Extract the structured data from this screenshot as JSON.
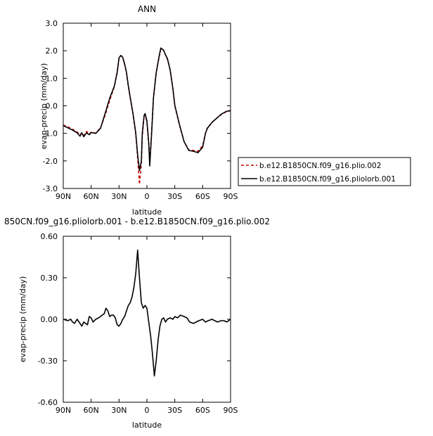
{
  "chart_data": [
    {
      "type": "line",
      "title": "ANN",
      "xlabel": "latitude",
      "ylabel": "evap-precip (mm/day)",
      "xlim": [
        90,
        -90
      ],
      "ylim": [
        -3.0,
        3.0
      ],
      "x_ticks": [
        {
          "value": 90,
          "label": "90N"
        },
        {
          "value": 60,
          "label": "60N"
        },
        {
          "value": 30,
          "label": "30N"
        },
        {
          "value": 0,
          "label": "0"
        },
        {
          "value": -30,
          "label": "30S"
        },
        {
          "value": -60,
          "label": "60S"
        },
        {
          "value": -90,
          "label": "90S"
        }
      ],
      "y_ticks": [
        {
          "value": 3.0,
          "label": "3.0"
        },
        {
          "value": 2.0,
          "label": "2.0"
        },
        {
          "value": 1.0,
          "label": "1.0"
        },
        {
          "value": 0.0,
          "label": "0.0"
        },
        {
          "value": -1.0,
          "label": "-1.0"
        },
        {
          "value": -2.0,
          "label": "-2.0"
        },
        {
          "value": -3.0,
          "label": "-3.0"
        }
      ],
      "legend_position": "right",
      "series": [
        {
          "name": "b.e12.B1850CN.f09_g16.plio.002",
          "color": "#cc0000",
          "style": "dashed",
          "x": [
            90,
            85,
            80,
            75,
            72,
            70,
            68,
            65,
            62,
            60,
            55,
            50,
            45,
            40,
            35,
            32,
            30,
            28,
            26,
            24,
            22,
            20,
            18,
            15,
            12,
            10,
            8,
            6,
            5,
            3,
            2,
            0,
            -2,
            -3,
            -5,
            -7,
            -10,
            -13,
            -15,
            -18,
            -20,
            -22,
            -25,
            -28,
            -30,
            -35,
            -40,
            -45,
            -50,
            -55,
            -60,
            -63,
            -65,
            -70,
            -75,
            -80,
            -85,
            -88,
            -90
          ],
          "y": [
            -0.7,
            -0.76,
            -0.85,
            -0.95,
            -1.05,
            -0.98,
            -1.08,
            -0.93,
            -1.02,
            -0.96,
            -0.99,
            -0.8,
            -0.35,
            0.2,
            0.7,
            1.2,
            1.72,
            1.83,
            1.76,
            1.5,
            1.2,
            0.7,
            0.3,
            -0.3,
            -1.0,
            -1.9,
            -2.85,
            -2.1,
            -1.1,
            -0.4,
            -0.3,
            -0.6,
            -1.4,
            -2.0,
            -1.0,
            0.3,
            1.2,
            1.75,
            2.08,
            2.02,
            1.85,
            1.7,
            1.3,
            0.6,
            0.0,
            -0.7,
            -1.3,
            -1.6,
            -1.62,
            -1.65,
            -1.45,
            -1.0,
            -0.8,
            -0.6,
            -0.45,
            -0.32,
            -0.22,
            -0.19,
            -0.18
          ]
        },
        {
          "name": "b.e12.B1850CN.f09_g16.pliolorb.001",
          "color": "#000000",
          "style": "solid",
          "x": [
            90,
            85,
            80,
            75,
            72,
            70,
            68,
            65,
            62,
            60,
            55,
            50,
            45,
            40,
            35,
            32,
            30,
            28,
            26,
            24,
            22,
            20,
            18,
            15,
            12,
            10,
            8,
            6,
            5,
            3,
            2,
            0,
            -2,
            -3,
            -5,
            -7,
            -10,
            -13,
            -15,
            -18,
            -20,
            -22,
            -25,
            -28,
            -30,
            -35,
            -40,
            -45,
            -50,
            -55,
            -60,
            -63,
            -65,
            -70,
            -75,
            -80,
            -85,
            -88,
            -90
          ],
          "y": [
            -0.72,
            -0.8,
            -0.88,
            -0.98,
            -1.1,
            -0.98,
            -1.12,
            -0.98,
            -1.05,
            -0.97,
            -1.0,
            -0.82,
            -0.28,
            0.28,
            0.72,
            1.22,
            1.74,
            1.83,
            1.76,
            1.52,
            1.22,
            0.72,
            0.32,
            -0.28,
            -0.98,
            -1.78,
            -2.35,
            -2.0,
            -1.0,
            -0.35,
            -0.28,
            -0.55,
            -1.35,
            -2.18,
            -1.05,
            0.28,
            1.2,
            1.78,
            2.1,
            2.02,
            1.85,
            1.72,
            1.3,
            0.62,
            0.02,
            -0.68,
            -1.3,
            -1.62,
            -1.65,
            -1.7,
            -1.5,
            -1.0,
            -0.82,
            -0.6,
            -0.45,
            -0.3,
            -0.21,
            -0.18,
            -0.17
          ]
        }
      ]
    },
    {
      "type": "line",
      "title": "850CN.f09_g16.pliolorb.001 - b.e12.B1850CN.f09_g16.plio.002",
      "xlabel": "latitude",
      "ylabel": "evap-precip (mm/day)",
      "xlim": [
        90,
        -90
      ],
      "ylim": [
        -0.6,
        0.6
      ],
      "x_ticks": [
        {
          "value": 90,
          "label": "90N"
        },
        {
          "value": 60,
          "label": "60N"
        },
        {
          "value": 30,
          "label": "30N"
        },
        {
          "value": 0,
          "label": "0"
        },
        {
          "value": -30,
          "label": "30S"
        },
        {
          "value": -60,
          "label": "60S"
        },
        {
          "value": -90,
          "label": "90S"
        }
      ],
      "y_ticks": [
        {
          "value": 0.6,
          "label": "0.60"
        },
        {
          "value": 0.3,
          "label": "0.30"
        },
        {
          "value": 0.0,
          "label": "0.00"
        },
        {
          "value": -0.3,
          "label": "-0.30"
        },
        {
          "value": -0.6,
          "label": "-0.60"
        }
      ],
      "series": [
        {
          "color": "#000000",
          "style": "solid",
          "x": [
            90,
            85,
            82,
            80,
            78,
            75,
            72,
            70,
            68,
            66,
            64,
            62,
            60,
            58,
            55,
            52,
            50,
            48,
            46,
            44,
            42,
            40,
            38,
            36,
            34,
            32,
            30,
            28,
            26,
            24,
            22,
            20,
            18,
            16,
            14,
            12,
            10,
            8,
            6,
            4,
            2,
            0,
            -2,
            -4,
            -6,
            -8,
            -10,
            -12,
            -14,
            -16,
            -18,
            -20,
            -22,
            -25,
            -28,
            -30,
            -33,
            -36,
            -40,
            -43,
            -46,
            -50,
            -53,
            -56,
            -60,
            -63,
            -66,
            -70,
            -73,
            -76,
            -80,
            -83,
            -86,
            -90
          ],
          "y": [
            0.0,
            -0.01,
            0.0,
            -0.02,
            -0.03,
            0.0,
            -0.03,
            -0.05,
            -0.02,
            -0.03,
            -0.04,
            0.02,
            0.01,
            -0.02,
            0.0,
            0.01,
            0.02,
            0.03,
            0.04,
            0.08,
            0.06,
            0.02,
            0.03,
            0.03,
            0.01,
            -0.04,
            -0.05,
            -0.03,
            0.0,
            0.02,
            0.06,
            0.1,
            0.12,
            0.16,
            0.23,
            0.33,
            0.5,
            0.3,
            0.12,
            0.08,
            0.1,
            0.08,
            -0.02,
            -0.12,
            -0.25,
            -0.41,
            -0.3,
            -0.15,
            -0.05,
            0.0,
            0.01,
            -0.02,
            0.0,
            0.01,
            0.0,
            0.02,
            0.01,
            0.03,
            0.02,
            0.01,
            -0.02,
            -0.03,
            -0.02,
            -0.01,
            0.0,
            -0.02,
            -0.01,
            0.0,
            -0.01,
            -0.02,
            -0.01,
            -0.01,
            -0.02,
            0.0
          ]
        }
      ]
    }
  ]
}
